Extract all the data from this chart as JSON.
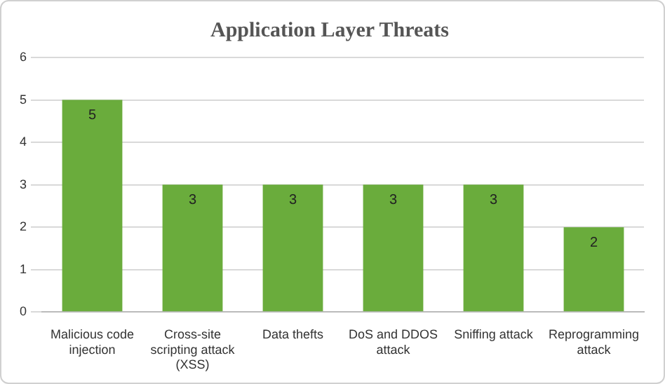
{
  "chart_data": {
    "type": "bar",
    "title": "Application Layer Threats",
    "categories": [
      "Malicious code injection",
      "Cross-site scripting attack (XSS)",
      "Data thefts",
      "DoS and DDOS attack",
      "Sniffing attack",
      "Reprogramming attack"
    ],
    "values": [
      5,
      3,
      3,
      3,
      3,
      2
    ],
    "color": "#6aac3c",
    "ylim": [
      0,
      6
    ],
    "yticks": [
      0,
      1,
      2,
      3,
      4,
      5,
      6
    ],
    "grid": "y",
    "data_labels": true
  }
}
